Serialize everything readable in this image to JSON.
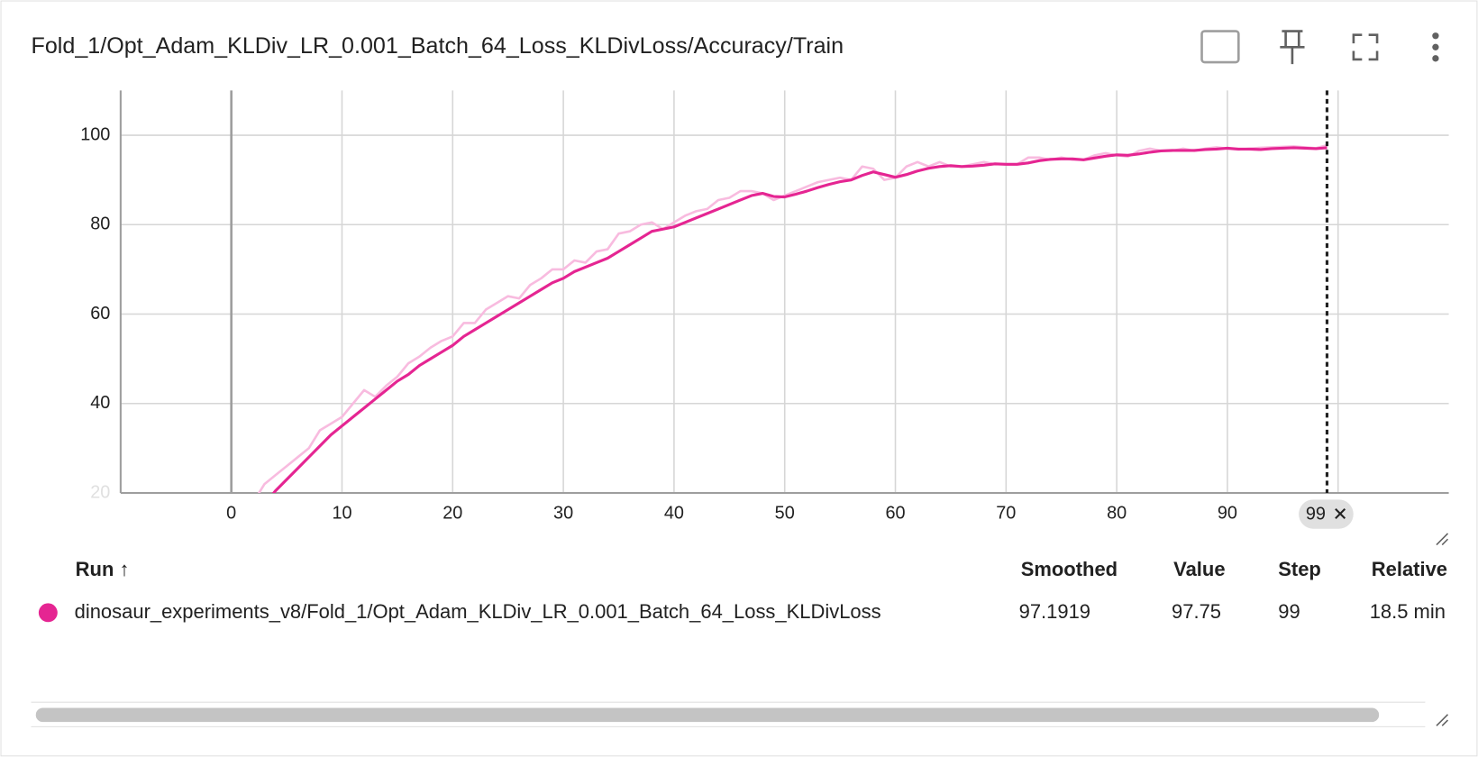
{
  "chart_data": {
    "type": "line",
    "title": "Fold_1/Opt_Adam_KLDiv_LR_0.001_Batch_64_Loss_KLDivLoss/Accuracy/Train",
    "x": [
      0,
      1,
      2,
      3,
      4,
      5,
      6,
      7,
      8,
      9,
      10,
      11,
      12,
      13,
      14,
      15,
      16,
      17,
      18,
      19,
      20,
      21,
      22,
      23,
      24,
      25,
      26,
      27,
      28,
      29,
      30,
      31,
      32,
      33,
      34,
      35,
      36,
      37,
      38,
      39,
      40,
      41,
      42,
      43,
      44,
      45,
      46,
      47,
      48,
      49,
      50,
      51,
      52,
      53,
      54,
      55,
      56,
      57,
      58,
      59,
      60,
      61,
      62,
      63,
      64,
      65,
      66,
      67,
      68,
      69,
      70,
      71,
      72,
      73,
      74,
      75,
      76,
      77,
      78,
      79,
      80,
      81,
      82,
      83,
      84,
      85,
      86,
      87,
      88,
      89,
      90,
      91,
      92,
      93,
      94,
      95,
      96,
      97,
      98,
      99
    ],
    "series": [
      {
        "name": "raw",
        "color": "#f8bbdf",
        "values": [
          12,
          15,
          18,
          22,
          24,
          26,
          28,
          30,
          34,
          35.5,
          37,
          40,
          43,
          41.5,
          44,
          46,
          49,
          50.5,
          52.5,
          54,
          55,
          58,
          58,
          61,
          62.5,
          64,
          63.5,
          66.5,
          68,
          70,
          70,
          72,
          71.5,
          74,
          74.5,
          78,
          78.5,
          80,
          80.5,
          79,
          80.5,
          82,
          83,
          83.5,
          85.5,
          86,
          87.5,
          87.5,
          87,
          85.5,
          86.5,
          87.5,
          88.5,
          89.5,
          90,
          90.5,
          90,
          93,
          92.5,
          90,
          90.5,
          93,
          94,
          93,
          94,
          93,
          93,
          93.5,
          94,
          93.5,
          93.5,
          93.5,
          95,
          95,
          94.5,
          95,
          94.5,
          94.5,
          95.5,
          96,
          95.5,
          95.2,
          96.5,
          97,
          96.5,
          96.5,
          97,
          96.5,
          97,
          97.3,
          97,
          96.8,
          97,
          97.2,
          97.3,
          97.4,
          97.5,
          97.3,
          97.1,
          97.75
        ]
      },
      {
        "name": "smoothed",
        "color": "#e52592",
        "values": [
          8,
          11,
          14,
          17.5,
          20.5,
          23,
          25.5,
          28,
          30.5,
          33,
          35,
          37,
          39,
          41,
          43,
          45,
          46.5,
          48.5,
          50,
          51.5,
          53,
          55,
          56.5,
          58,
          59.5,
          61,
          62.5,
          64,
          65.5,
          67,
          68,
          69.5,
          70.5,
          71.5,
          72.5,
          74,
          75.5,
          77,
          78.5,
          79,
          79.5,
          80.5,
          81.5,
          82.5,
          83.5,
          84.5,
          85.5,
          86.5,
          87,
          86.3,
          86.2,
          86.8,
          87.5,
          88.3,
          89,
          89.6,
          90,
          91,
          91.8,
          91.2,
          90.6,
          91.2,
          92,
          92.6,
          93,
          93.2,
          93,
          93.1,
          93.3,
          93.6,
          93.5,
          93.5,
          93.8,
          94.3,
          94.6,
          94.7,
          94.7,
          94.5,
          94.9,
          95.3,
          95.6,
          95.5,
          95.8,
          96.2,
          96.5,
          96.6,
          96.6,
          96.6,
          96.8,
          96.9,
          97.1,
          96.9,
          96.9,
          96.8,
          97.0,
          97.1,
          97.2,
          97.1,
          97.0,
          97.1919
        ]
      }
    ],
    "xlim": [
      -10,
      110
    ],
    "xticks": [
      0,
      10,
      20,
      30,
      40,
      50,
      60,
      70,
      80,
      90,
      100
    ],
    "ylim": [
      20,
      110
    ],
    "yticks": [
      20,
      40,
      60,
      80,
      100
    ],
    "grid": true,
    "cursor_step": 99
  },
  "table": {
    "headers": [
      "Run ↑",
      "Smoothed",
      "Value",
      "Step",
      "Relative"
    ],
    "rows": [
      [
        "dinosaur_experiments_v8/Fold_1/Opt_Adam_KLDiv_LR_0.001_Batch_64_Loss_KLDivLoss",
        "97.1919",
        "97.75",
        "99",
        "18.5 min"
      ]
    ]
  }
}
